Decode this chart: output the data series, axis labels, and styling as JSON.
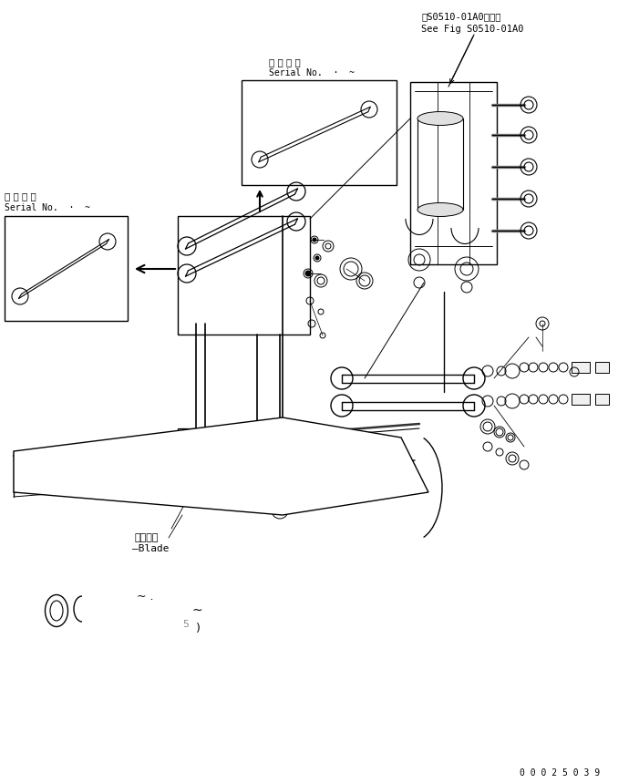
{
  "bg_color": "#ffffff",
  "fig_width": 7.01,
  "fig_height": 8.59,
  "dpi": 100,
  "top_right_text1": "第S0510-01A0図参照",
  "top_right_text2": "See Fig S0510-01A0",
  "serial_no_top_jp": "適 用 号 機",
  "serial_no_top_en": "Serial No.  ·  ~",
  "serial_no_left_jp": "適 用 号 機",
  "serial_no_left_en": "Serial No.  ·  ~",
  "blade_label_jp": "ブレード",
  "blade_label_en": "Blade",
  "part_number": "0 0 0 2 5 0 3 9"
}
